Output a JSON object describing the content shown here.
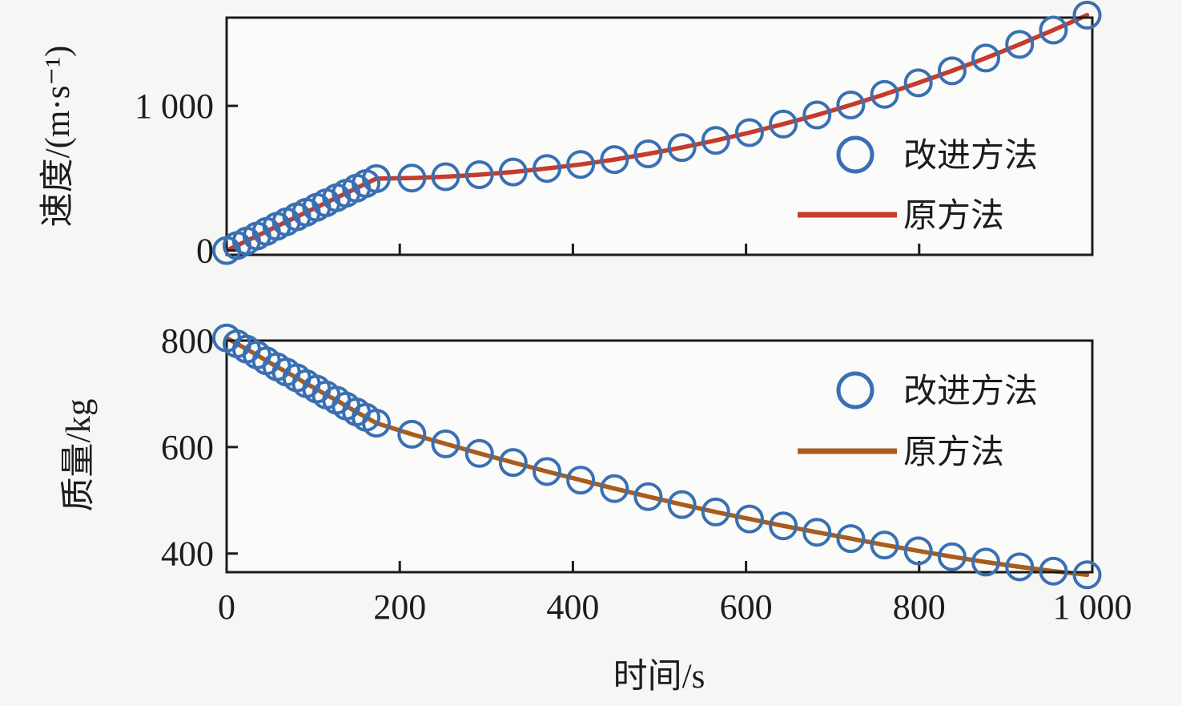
{
  "figure": {
    "colors": {
      "background": "#f6f6f4",
      "plot_background": "#fbfbfa",
      "frame": "#1c1c1c",
      "text": "#1c1c1c",
      "improved_marker": "#3a70b2",
      "original_line_top": "#c53b2c",
      "original_line_bottom": "#a85c1e"
    }
  },
  "chart_data": [
    {
      "type": "line",
      "title": "",
      "xlabel": "",
      "ylabel": "速度/(m·s⁻¹)",
      "xlim": [
        0,
        1000
      ],
      "ylim": [
        -30,
        1610
      ],
      "grid": false,
      "xticks": [
        {
          "v": 0,
          "label": ""
        },
        {
          "v": 200,
          "label": ""
        },
        {
          "v": 400,
          "label": ""
        },
        {
          "v": 600,
          "label": ""
        },
        {
          "v": 800,
          "label": ""
        }
      ],
      "xtick_labels_visible": false,
      "yticks": [
        {
          "v": 0,
          "label": "0"
        },
        {
          "v": 1000,
          "label": "1 000"
        }
      ],
      "x": [
        0,
        12,
        23,
        35,
        46,
        58,
        69,
        81,
        92,
        104,
        115,
        127,
        138,
        150,
        161,
        173,
        214,
        253,
        292,
        331,
        370,
        409,
        448,
        487,
        526,
        565,
        604,
        643,
        682,
        721,
        760,
        799,
        838,
        877,
        916,
        955,
        994
      ],
      "series": [
        {
          "name": "改进方法",
          "style": "markers",
          "marker": "circle",
          "color": "#3a70b2",
          "y": [
            0,
            34,
            66,
            100,
            132,
            167,
            198,
            233,
            264,
            299,
            330,
            365,
            396,
            431,
            463,
            497,
            501,
            510,
            524,
            543,
            567,
            595,
            629,
            668,
            712,
            761,
            815,
            874,
            937,
            1006,
            1080,
            1159,
            1242,
            1331,
            1425,
            1524,
            1627
          ]
        },
        {
          "name": "原方法",
          "style": "line",
          "color": "#c53b2c",
          "y": [
            0,
            34,
            66,
            100,
            132,
            167,
            198,
            233,
            264,
            299,
            330,
            365,
            396,
            431,
            463,
            497,
            501,
            510,
            524,
            543,
            567,
            595,
            629,
            668,
            712,
            761,
            815,
            874,
            937,
            1006,
            1080,
            1159,
            1242,
            1331,
            1425,
            1524,
            1627
          ]
        }
      ],
      "legend": {
        "position": "right-center",
        "entries": [
          {
            "label": "改进方法",
            "symbol": "circle"
          },
          {
            "label": "原方法",
            "symbol": "line"
          }
        ]
      }
    },
    {
      "type": "line",
      "title": "",
      "xlabel": "时间/s",
      "ylabel": "质量/kg",
      "xlim": [
        0,
        1000
      ],
      "ylim": [
        365,
        800
      ],
      "grid": false,
      "xticks": [
        {
          "v": 0,
          "label": "0"
        },
        {
          "v": 200,
          "label": "200"
        },
        {
          "v": 400,
          "label": "400"
        },
        {
          "v": 600,
          "label": "600"
        },
        {
          "v": 800,
          "label": "800"
        },
        {
          "v": 1000,
          "label": "1 000"
        }
      ],
      "xtick_labels_visible": true,
      "yticks": [
        {
          "v": 400,
          "label": "400"
        },
        {
          "v": 600,
          "label": "600"
        },
        {
          "v": 800,
          "label": "800"
        }
      ],
      "x": [
        0,
        12,
        23,
        35,
        46,
        58,
        69,
        81,
        92,
        104,
        115,
        127,
        138,
        150,
        161,
        173,
        214,
        253,
        292,
        331,
        370,
        409,
        448,
        487,
        526,
        565,
        604,
        643,
        682,
        721,
        760,
        799,
        838,
        877,
        916,
        955,
        994
      ],
      "series": [
        {
          "name": "改进方法",
          "style": "markers",
          "marker": "circle",
          "color": "#3a70b2",
          "y": [
            805,
            794,
            784,
            773,
            762,
            751,
            741,
            730,
            719,
            709,
            698,
            688,
            677,
            666,
            656,
            645,
            624,
            606,
            588,
            571,
            554,
            538,
            522,
            507,
            492,
            478,
            465,
            452,
            440,
            428,
            416,
            405,
            394,
            384,
            375,
            367,
            360
          ]
        },
        {
          "name": "原方法",
          "style": "line",
          "color": "#a85c1e",
          "y": [
            805,
            794,
            784,
            773,
            762,
            751,
            741,
            730,
            719,
            709,
            698,
            688,
            677,
            666,
            656,
            645,
            624,
            606,
            588,
            571,
            554,
            538,
            522,
            507,
            492,
            478,
            465,
            452,
            440,
            428,
            416,
            405,
            394,
            384,
            375,
            367,
            360
          ]
        }
      ],
      "legend": {
        "position": "right-center",
        "entries": [
          {
            "label": "改进方法",
            "symbol": "circle"
          },
          {
            "label": "原方法",
            "symbol": "line"
          }
        ]
      }
    }
  ]
}
